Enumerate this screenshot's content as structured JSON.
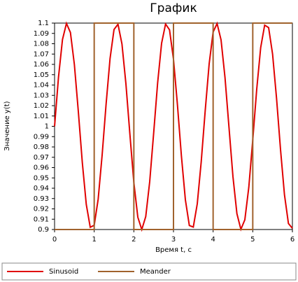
{
  "chart_data": {
    "type": "line",
    "title": "График",
    "xlabel": "Время t, c",
    "ylabel": "Значение y(t)",
    "xlim": [
      0,
      6
    ],
    "xticks": [
      0,
      1,
      2,
      3,
      4,
      5,
      6
    ],
    "ylim": [
      0.9,
      1.1
    ],
    "yticks": [
      0.9,
      0.91,
      0.92,
      0.93,
      0.94,
      0.95,
      0.96,
      0.97,
      0.98,
      0.99,
      1,
      1.01,
      1.02,
      1.03,
      1.04,
      1.05,
      1.06,
      1.07,
      1.08,
      1.09,
      1.1
    ],
    "grid": false,
    "legend": "bottom",
    "series": [
      {
        "name": "Sinusoid",
        "color": "#e00000",
        "x": [
          0,
          0.1,
          0.2,
          0.3,
          0.4,
          0.5,
          0.6,
          0.7,
          0.8,
          0.9,
          1,
          1.1,
          1.2,
          1.3,
          1.4,
          1.5,
          1.6,
          1.7,
          1.8,
          1.9,
          2,
          2.1,
          2.2,
          2.3,
          2.4,
          2.5,
          2.6,
          2.7,
          2.8,
          2.9,
          3,
          3.1,
          3.2,
          3.3,
          3.4,
          3.5,
          3.6,
          3.7,
          3.8,
          3.9,
          4,
          4.1,
          4.2,
          4.3,
          4.4,
          4.5,
          4.6,
          4.7,
          4.8,
          4.9,
          5,
          5.1,
          5.2,
          5.3,
          5.4,
          5.5,
          5.6,
          5.7,
          5.8,
          5.9,
          6
        ],
        "values": [
          1,
          1.0479,
          1.0841,
          1.0997,
          1.0909,
          1.0598,
          1.0141,
          0.9649,
          0.9243,
          0.9022,
          0.9041,
          0.9294,
          0.9721,
          1.0215,
          1.0657,
          1.0938,
          1.0989,
          1.0798,
          1.0412,
          0.9925,
          0.9456,
          0.912,
          0.9,
          0.9125,
          0.9463,
          0.9934,
          1.042,
          1.0804,
          1.0991,
          1.0935,
          1.065,
          1.0207,
          0.9712,
          0.9288,
          0.9039,
          0.9024,
          0.9249,
          0.9658,
          1.015,
          1.0605,
          1.0913,
          1.0996,
          1.0837,
          1.0471,
          0.9991,
          0.9513,
          0.9154,
          0.9002,
          0.9094,
          0.9409,
          0.9868,
          1.036,
          1.0763,
          1.098,
          1.0956,
          1.0699,
          1.0271,
          0.9776,
          0.9336,
          0.9058,
          0.9012
        ]
      },
      {
        "name": "Meander",
        "color": "#a0622d",
        "x": [
          0,
          1,
          1,
          2,
          2,
          3,
          3,
          4,
          4,
          5,
          5,
          6
        ],
        "values": [
          0.9,
          0.9,
          1.1,
          1.1,
          0.9,
          0.9,
          1.1,
          1.1,
          0.9,
          0.9,
          1.1,
          1.1
        ]
      }
    ]
  }
}
